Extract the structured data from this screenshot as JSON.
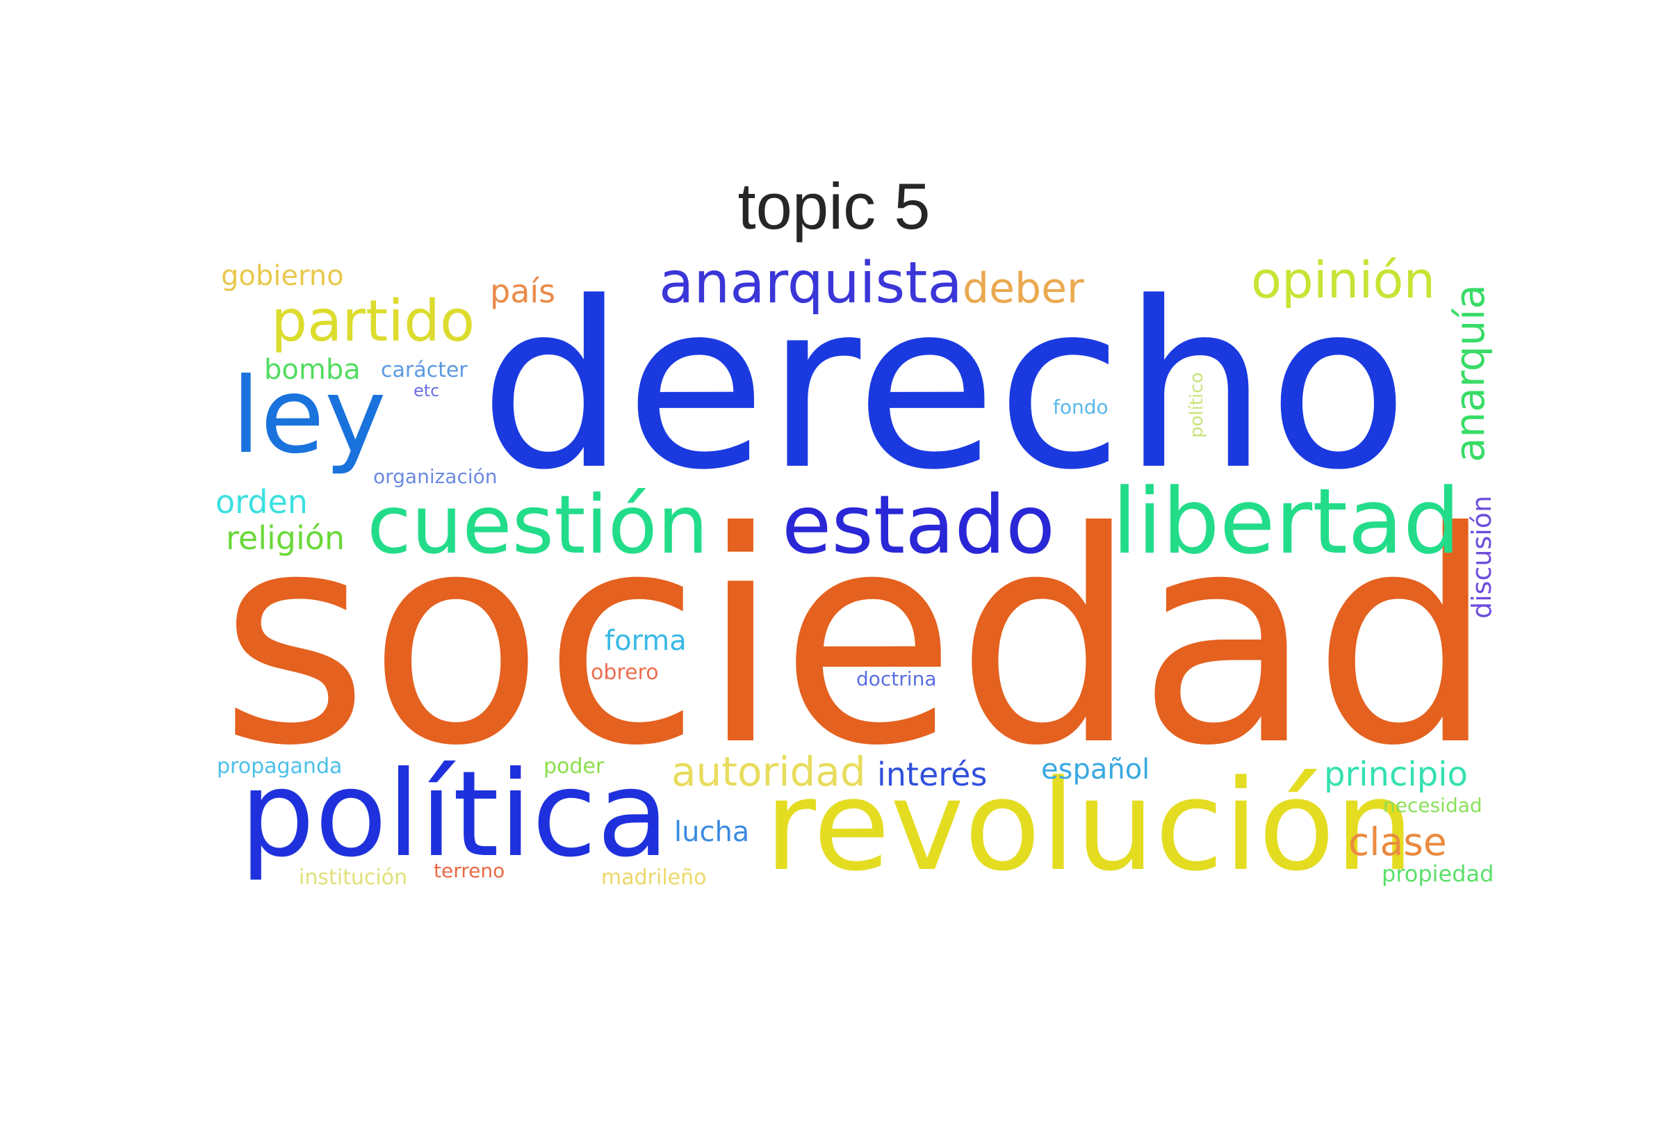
{
  "title": "topic 5",
  "words": [
    {
      "text": "sociedad",
      "color": "#e4611f"
    },
    {
      "text": "derecho",
      "color": "#1a3ae0"
    },
    {
      "text": "revolución",
      "color": "#e4dc21"
    },
    {
      "text": "política",
      "color": "#1f31dc"
    },
    {
      "text": "libertad",
      "color": "#23dc8a"
    },
    {
      "text": "cuestión",
      "color": "#23dc8a"
    },
    {
      "text": "estado",
      "color": "#2a27d6"
    },
    {
      "text": "ley",
      "color": "#1a73dc"
    },
    {
      "text": "anarquista",
      "color": "#3b36d8"
    },
    {
      "text": "partido",
      "color": "#dcdc2e"
    },
    {
      "text": "opinión",
      "color": "#c8e334"
    },
    {
      "text": "anarquía",
      "color": "#38dc66"
    },
    {
      "text": "discusión",
      "color": "#6d4edc"
    },
    {
      "text": "autoridad",
      "color": "#e8dc5c"
    },
    {
      "text": "principio",
      "color": "#34e0b0"
    },
    {
      "text": "clase",
      "color": "#ea8a40"
    },
    {
      "text": "deber",
      "color": "#eaa950"
    },
    {
      "text": "país",
      "color": "#ea8a48"
    },
    {
      "text": "gobierno",
      "color": "#e8c84c"
    },
    {
      "text": "bomba",
      "color": "#52dc60"
    },
    {
      "text": "orden",
      "color": "#3ce0e0"
    },
    {
      "text": "religión",
      "color": "#6ad838"
    },
    {
      "text": "interés",
      "color": "#3050dc"
    },
    {
      "text": "español",
      "color": "#3aa8e0"
    },
    {
      "text": "lucha",
      "color": "#3a8ae0"
    },
    {
      "text": "forma",
      "color": "#38b8e6"
    },
    {
      "text": "obrero",
      "color": "#ea6e50"
    },
    {
      "text": "doctrina",
      "color": "#5a6ee0"
    },
    {
      "text": "propaganda",
      "color": "#4ac0ea"
    },
    {
      "text": "poder",
      "color": "#8ae04a"
    },
    {
      "text": "necesidad",
      "color": "#8ae05a"
    },
    {
      "text": "propiedad",
      "color": "#5ae06a"
    },
    {
      "text": "institución",
      "color": "#e0e07a"
    },
    {
      "text": "terreno",
      "color": "#ea6a44"
    },
    {
      "text": "madrileño",
      "color": "#ecd86a"
    },
    {
      "text": "carácter",
      "color": "#5a9ae0"
    },
    {
      "text": "etc",
      "color": "#6a6ee0"
    },
    {
      "text": "organización",
      "color": "#6a8ae0"
    },
    {
      "text": "fondo",
      "color": "#5ab8ea"
    },
    {
      "text": "político",
      "color": "#c8e47a"
    }
  ]
}
